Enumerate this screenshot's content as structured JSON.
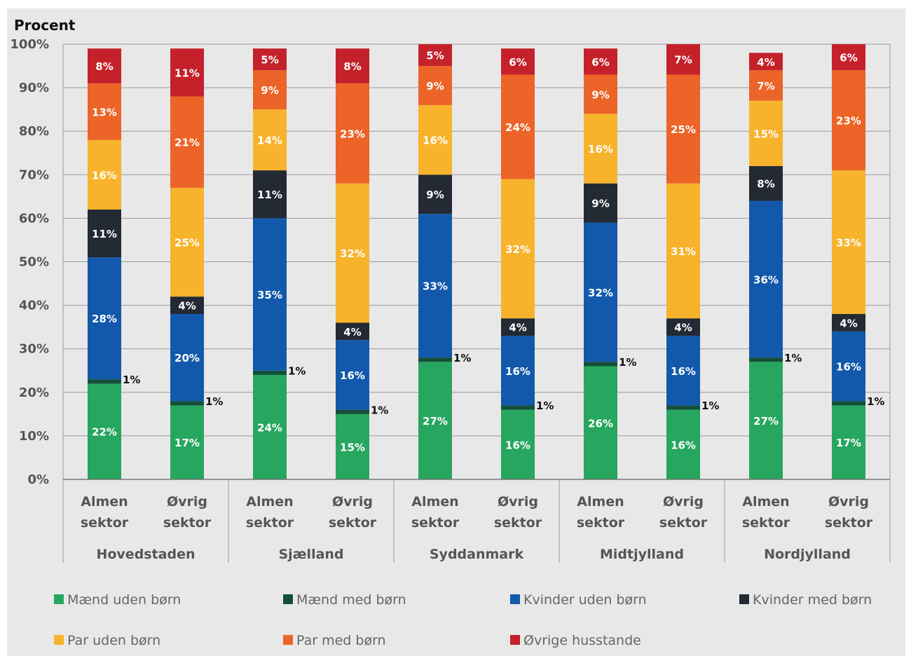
{
  "chart_data": {
    "type": "bar",
    "stacked": true,
    "ylabel": "Procent",
    "ylim": [
      0,
      100
    ],
    "yticks": [
      "0%",
      "10%",
      "20%",
      "30%",
      "40%",
      "50%",
      "60%",
      "70%",
      "80%",
      "90%",
      "100%"
    ],
    "grid": true,
    "legend_position": "bottom",
    "groups": [
      "Hovedstaden",
      "Sjælland",
      "Syddanmark",
      "Midtjylland",
      "Nordjylland"
    ],
    "categories": [
      "Almen sektor",
      "Øvrig sektor",
      "Almen sektor",
      "Øvrig sektor",
      "Almen sektor",
      "Øvrig sektor",
      "Almen sektor",
      "Øvrig sektor",
      "Almen sektor",
      "Øvrig sektor"
    ],
    "series": [
      {
        "name": "Mænd uden børn",
        "color": "#27a65f",
        "values": [
          22,
          17,
          24,
          15,
          27,
          16,
          26,
          16,
          27,
          17
        ],
        "labels": [
          "22%",
          "17%",
          "24%",
          "15%",
          "27%",
          "16%",
          "26%",
          "16%",
          "27%",
          "17%"
        ]
      },
      {
        "name": "Mænd med børn",
        "color": "#134f3a",
        "values": [
          1,
          1,
          1,
          1,
          1,
          1,
          1,
          1,
          1,
          1
        ],
        "labels": [
          "1%",
          "1%",
          "1%",
          "1%",
          "1%",
          "1%",
          "1%",
          "1%",
          "1%",
          "1%"
        ]
      },
      {
        "name": "Kvinder uden børn",
        "color": "#1259ab",
        "values": [
          28,
          20,
          35,
          16,
          33,
          16,
          32,
          16,
          36,
          16
        ],
        "labels": [
          "28%",
          "20%",
          "35%",
          "16%",
          "33%",
          "16%",
          "32%",
          "16%",
          "36%",
          "16%"
        ]
      },
      {
        "name": "Kvinder med børn",
        "color": "#232a33",
        "values": [
          11,
          4,
          11,
          4,
          9,
          4,
          9,
          4,
          8,
          4
        ],
        "labels": [
          "11%",
          "4%",
          "11%",
          "4%",
          "9%",
          "4%",
          "9%",
          "4%",
          "8%",
          "4%"
        ]
      },
      {
        "name": "Par uden børn",
        "color": "#f7b32b",
        "values": [
          16,
          25,
          14,
          32,
          16,
          32,
          16,
          31,
          15,
          33
        ],
        "labels": [
          "16%",
          "25%",
          "14%",
          "32%",
          "16%",
          "32%",
          "16%",
          "31%",
          "15%",
          "33%"
        ]
      },
      {
        "name": "Par med børn",
        "color": "#ec6427",
        "values": [
          13,
          21,
          9,
          23,
          9,
          24,
          9,
          25,
          7,
          23
        ],
        "labels": [
          "13%",
          "21%",
          "9%",
          "23%",
          "9%",
          "24%",
          "9%",
          "25%",
          "7%",
          "23%"
        ]
      },
      {
        "name": "Øvrige husstande",
        "color": "#c4212b",
        "values": [
          8,
          11,
          5,
          8,
          5,
          6,
          6,
          7,
          4,
          6
        ],
        "labels": [
          "8%",
          "11%",
          "5%",
          "8%",
          "5%",
          "6%",
          "6%",
          "7%",
          "4%",
          "6%"
        ]
      }
    ]
  }
}
